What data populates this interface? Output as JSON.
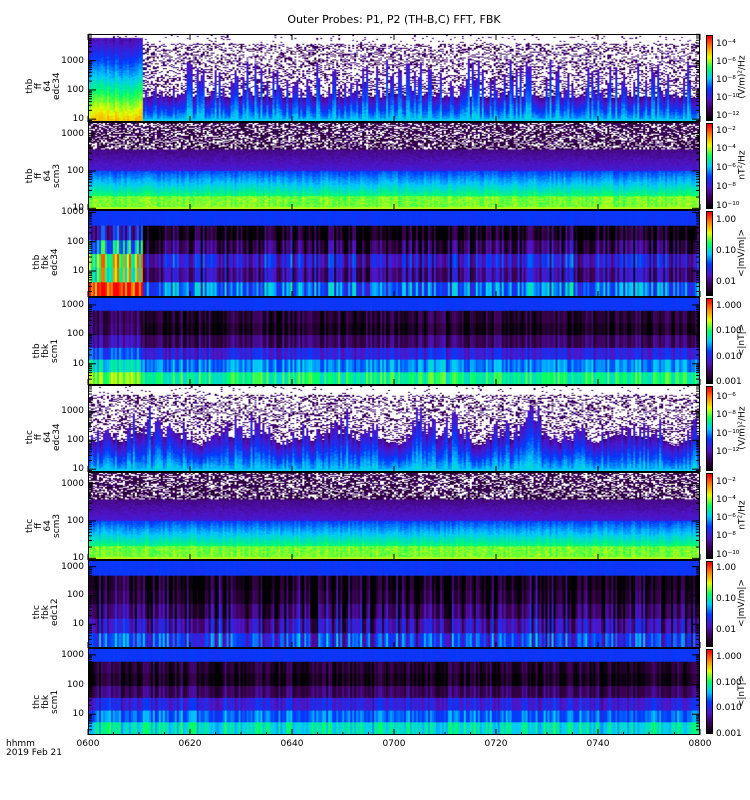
{
  "title": "Outer Probes: P1, P2 (TH-B,C) FFT, FBK",
  "xaxis": {
    "ticks": [
      "0600",
      "0620",
      "0640",
      "0700",
      "0720",
      "0740",
      "0800"
    ],
    "label_format": "hhmm",
    "date": "2019 Feb 21"
  },
  "chart_data": [
    {
      "type": "heatmap",
      "kind": "ff_e",
      "probe": "thb",
      "ylabel": [
        "thb",
        "ff",
        "64",
        "edc34"
      ],
      "ylog": true,
      "ylim": [
        8,
        8192
      ],
      "yticks": [
        "10",
        "100",
        "1000"
      ],
      "colorbar": {
        "unit": "(V/m)²/Hz",
        "log_range": [
          -12.7,
          -2.9
        ],
        "ticks": [
          {
            "label": "10⁻⁴",
            "exp": -4
          },
          {
            "label": "10⁻⁶",
            "exp": -6
          },
          {
            "label": "10⁻⁸",
            "exp": -8
          },
          {
            "label": "10⁻¹⁰",
            "exp": -10
          },
          {
            "label": "10⁻¹²",
            "exp": -12
          }
        ]
      }
    },
    {
      "type": "heatmap",
      "kind": "ff_b",
      "probe": "thb",
      "ylabel": [
        "thb",
        "ff",
        "64",
        "scm3"
      ],
      "ylog": true,
      "ylim": [
        9,
        2048
      ],
      "yticks": [
        "10",
        "100",
        "1000"
      ],
      "colorbar": {
        "unit": "nT²/Hz",
        "log_range": [
          -10.4,
          -1.1
        ],
        "ticks": [
          {
            "label": "10⁻²",
            "exp": -2
          },
          {
            "label": "10⁻⁴",
            "exp": -4
          },
          {
            "label": "10⁻⁶",
            "exp": -6
          },
          {
            "label": "10⁻⁸",
            "exp": -8
          },
          {
            "label": "10⁻¹⁰",
            "exp": -10
          }
        ]
      }
    },
    {
      "type": "heatmap",
      "kind": "fbk_e",
      "probe": "thb",
      "ylabel": [
        "thb",
        "fbk",
        "edc34"
      ],
      "ylog": true,
      "ylim": [
        1.3,
        1200
      ],
      "yticks": [
        "10",
        "100",
        "1000"
      ],
      "colorbar": {
        "unit": "<|mV/m|>",
        "log_range": [
          -2.5,
          0.32
        ],
        "ticks": [
          {
            "label": "1.00",
            "exp": 0
          },
          {
            "label": "0.10",
            "exp": -1
          },
          {
            "label": "0.01",
            "exp": -2
          }
        ]
      }
    },
    {
      "type": "heatmap",
      "kind": "fbk_b",
      "probe": "thb",
      "ylabel": [
        "thb",
        "fbk",
        "scm1"
      ],
      "ylog": true,
      "ylim": [
        1.9,
        1860
      ],
      "yticks": [
        "10",
        "100",
        "1000"
      ],
      "colorbar": {
        "unit": "<|nT|>",
        "log_range": [
          -3.12,
          0.35
        ],
        "ticks": [
          {
            "label": "1.000",
            "exp": 0
          },
          {
            "label": "0.100",
            "exp": -1
          },
          {
            "label": "0.010",
            "exp": -2
          },
          {
            "label": "0.001",
            "exp": -3
          }
        ]
      }
    },
    {
      "type": "heatmap",
      "kind": "ff_e",
      "probe": "thc",
      "ylabel": [
        "thc",
        "ff",
        "64",
        "edc34"
      ],
      "ylog": true,
      "ylim": [
        8,
        8192
      ],
      "yticks": [
        "10",
        "100",
        "1000"
      ],
      "colorbar": {
        "unit": "(V/m)²/Hz",
        "log_range": [
          -14.2,
          -4.7
        ],
        "ticks": [
          {
            "label": "10⁻⁶",
            "exp": -6
          },
          {
            "label": "10⁻⁸",
            "exp": -8
          },
          {
            "label": "10⁻¹⁰",
            "exp": -10
          },
          {
            "label": "10⁻¹²",
            "exp": -12
          }
        ]
      }
    },
    {
      "type": "heatmap",
      "kind": "ff_b",
      "probe": "thc",
      "ylabel": [
        "thc",
        "ff",
        "64",
        "scm3"
      ],
      "ylog": true,
      "ylim": [
        9,
        2048
      ],
      "yticks": [
        "10",
        "100",
        "1000"
      ],
      "colorbar": {
        "unit": "nT²/Hz",
        "log_range": [
          -10.6,
          -0.9
        ],
        "ticks": [
          {
            "label": "10⁻²",
            "exp": -2
          },
          {
            "label": "10⁻⁴",
            "exp": -4
          },
          {
            "label": "10⁻⁶",
            "exp": -6
          },
          {
            "label": "10⁻⁸",
            "exp": -8
          },
          {
            "label": "10⁻¹⁰",
            "exp": -10
          }
        ]
      }
    },
    {
      "type": "heatmap",
      "kind": "fbk_e",
      "probe": "thc",
      "ylabel": [
        "thc",
        "fbk",
        "edc12"
      ],
      "ylog": true,
      "ylim": [
        1.5,
        1700
      ],
      "yticks": [
        "10",
        "100",
        "1000"
      ],
      "colorbar": {
        "unit": "<|mV/m|>",
        "log_range": [
          -2.6,
          0.27
        ],
        "ticks": [
          {
            "label": "1.00",
            "exp": 0
          },
          {
            "label": "0.10",
            "exp": -1
          },
          {
            "label": "0.01",
            "exp": -2
          }
        ]
      }
    },
    {
      "type": "heatmap",
      "kind": "fbk_b",
      "probe": "thc",
      "ylabel": [
        "thc",
        "fbk",
        "scm1"
      ],
      "ylog": true,
      "ylim": [
        2,
        1700
      ],
      "yticks": [
        "10",
        "100",
        "1000"
      ],
      "colorbar": {
        "unit": "<|nT|>",
        "log_range": [
          -3.05,
          0.35
        ],
        "ticks": [
          {
            "label": "1.000",
            "exp": 0
          },
          {
            "label": "0.100",
            "exp": -1
          },
          {
            "label": "0.010",
            "exp": -2
          },
          {
            "label": "0.001",
            "exp": -3
          }
        ]
      }
    }
  ]
}
